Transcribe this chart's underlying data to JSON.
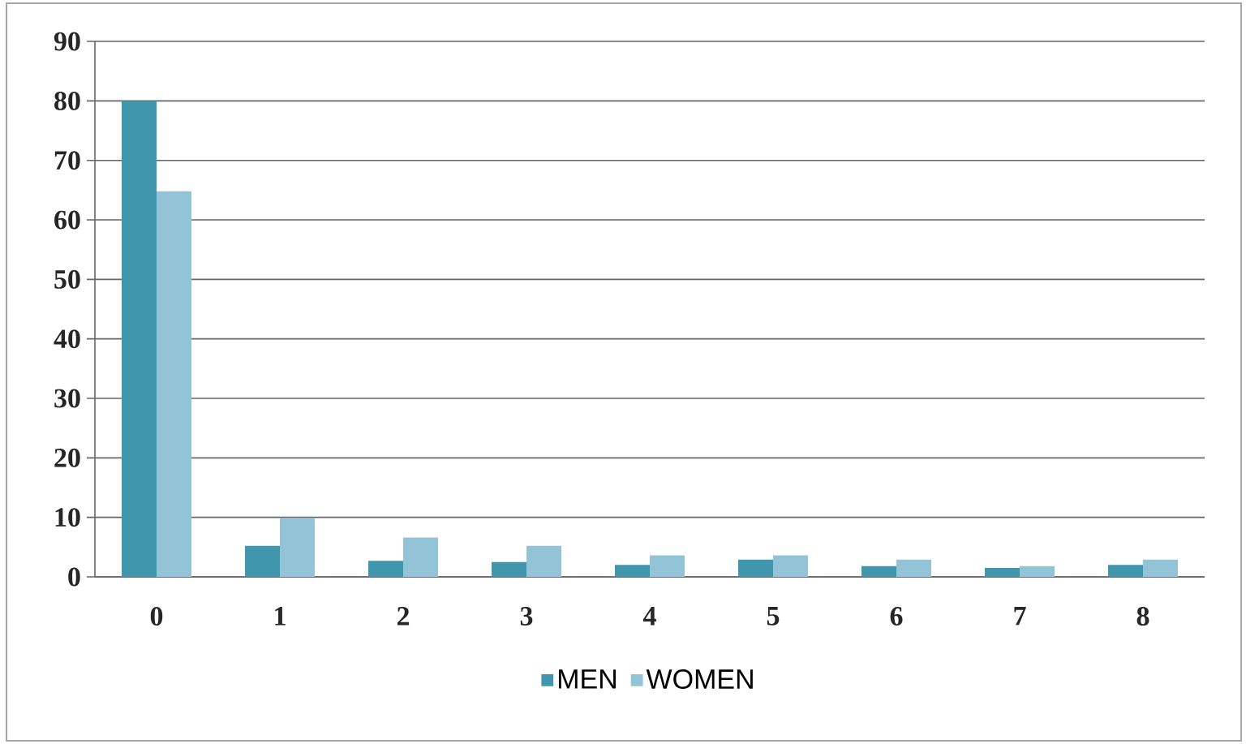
{
  "chart_data": {
    "type": "bar",
    "categories": [
      "0",
      "1",
      "2",
      "3",
      "4",
      "5",
      "6",
      "7",
      "8"
    ],
    "series": [
      {
        "name": "MEN",
        "color": "#3f96ad",
        "values": [
          80,
          5.2,
          2.7,
          2.5,
          2.0,
          2.9,
          1.8,
          1.5,
          2.0
        ]
      },
      {
        "name": "WOMEN",
        "color": "#93c3d6",
        "values": [
          64.8,
          9.9,
          6.6,
          5.2,
          3.6,
          3.6,
          2.9,
          1.8,
          2.9
        ]
      }
    ],
    "ylim": [
      0,
      90
    ],
    "yticks": [
      0,
      10,
      20,
      30,
      40,
      50,
      60,
      70,
      80,
      90
    ],
    "grid": "y",
    "legend": "bottom"
  }
}
